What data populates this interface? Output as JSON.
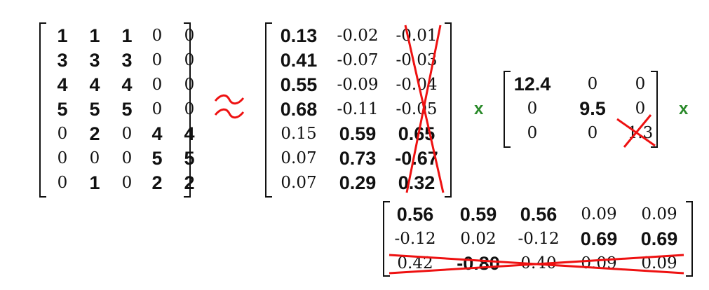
{
  "colors": {
    "text": "#111111",
    "strike": "#ee1111",
    "approx": "#ee1111",
    "times": "#2a8a2a"
  },
  "matrices": {
    "A": {
      "rows": [
        [
          [
            "1",
            1
          ],
          [
            "1",
            1
          ],
          [
            "1",
            1
          ],
          [
            "0",
            0
          ],
          [
            "0",
            0
          ]
        ],
        [
          [
            "3",
            1
          ],
          [
            "3",
            1
          ],
          [
            "3",
            1
          ],
          [
            "0",
            0
          ],
          [
            "0",
            0
          ]
        ],
        [
          [
            "4",
            1
          ],
          [
            "4",
            1
          ],
          [
            "4",
            1
          ],
          [
            "0",
            0
          ],
          [
            "0",
            0
          ]
        ],
        [
          [
            "5",
            1
          ],
          [
            "5",
            1
          ],
          [
            "5",
            1
          ],
          [
            "0",
            0
          ],
          [
            "0",
            0
          ]
        ],
        [
          [
            "0",
            0
          ],
          [
            "2",
            1
          ],
          [
            "0",
            0
          ],
          [
            "4",
            1
          ],
          [
            "4",
            1
          ]
        ],
        [
          [
            "0",
            0
          ],
          [
            "0",
            0
          ],
          [
            "0",
            0
          ],
          [
            "5",
            1
          ],
          [
            "5",
            1
          ]
        ],
        [
          [
            "0",
            0
          ],
          [
            "1",
            1
          ],
          [
            "0",
            0
          ],
          [
            "2",
            1
          ],
          [
            "2",
            1
          ]
        ]
      ]
    },
    "U": {
      "rows": [
        [
          [
            "0.13",
            1
          ],
          [
            "-0.02",
            0
          ],
          [
            "-0.01",
            0
          ]
        ],
        [
          [
            "0.41",
            1
          ],
          [
            "-0.07",
            0
          ],
          [
            "-0.03",
            0
          ]
        ],
        [
          [
            "0.55",
            1
          ],
          [
            "-0.09",
            0
          ],
          [
            "-0.04",
            0
          ]
        ],
        [
          [
            "0.68",
            1
          ],
          [
            "-0.11",
            0
          ],
          [
            "-0.05",
            0
          ]
        ],
        [
          [
            "0.15",
            0
          ],
          [
            "0.59",
            1
          ],
          [
            "0.65",
            1
          ]
        ],
        [
          [
            "0.07",
            0
          ],
          [
            "0.73",
            1
          ],
          [
            "-0.67",
            1
          ]
        ],
        [
          [
            "0.07",
            0
          ],
          [
            "0.29",
            1
          ],
          [
            "0.32",
            1
          ]
        ]
      ]
    },
    "S": {
      "rows": [
        [
          [
            "12.4",
            1
          ],
          [
            "0",
            0
          ],
          [
            "0",
            0
          ]
        ],
        [
          [
            "0",
            0
          ],
          [
            "9.5",
            1
          ],
          [
            "0",
            0
          ]
        ],
        [
          [
            "0",
            0
          ],
          [
            "0",
            0
          ],
          [
            "1.3",
            0
          ]
        ]
      ]
    },
    "V": {
      "rows": [
        [
          [
            "0.56",
            1
          ],
          [
            "0.59",
            1
          ],
          [
            "0.56",
            1
          ],
          [
            "0.09",
            0
          ],
          [
            "0.09",
            0
          ]
        ],
        [
          [
            "-0.12",
            0
          ],
          [
            "0.02",
            0
          ],
          [
            "-0.12",
            0
          ],
          [
            "0.69",
            1
          ],
          [
            "0.69",
            1
          ]
        ],
        [
          [
            "0.42",
            0
          ],
          [
            "-0.80",
            1
          ],
          [
            "0.40",
            0
          ],
          [
            "0.09",
            0
          ],
          [
            "0.09",
            0
          ]
        ]
      ]
    }
  },
  "operators": {
    "approx": "≈",
    "times_1": "x",
    "times_2": "x"
  }
}
